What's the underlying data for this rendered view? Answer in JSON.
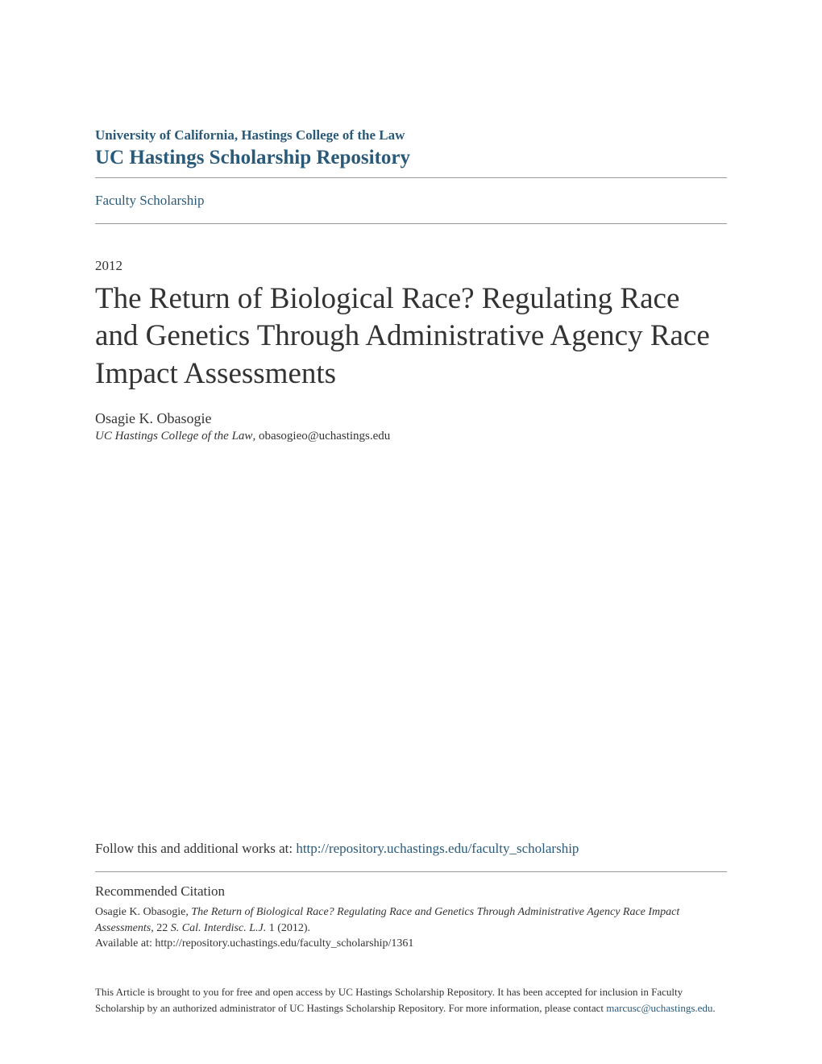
{
  "header": {
    "institution": "University of California, Hastings College of the Law",
    "repository": "UC Hastings Scholarship Repository",
    "scholarship_link": "Faculty Scholarship"
  },
  "article": {
    "year": "2012",
    "title": "The Return of Biological Race? Regulating Race and Genetics Through Administrative Agency Race Impact Assessments",
    "author": "Osagie K. Obasogie",
    "affiliation_italic": "UC Hastings College of the Law",
    "affiliation_email": ", obasogieo@uchastings.edu"
  },
  "follow": {
    "prefix": "Follow this and additional works at: ",
    "link_text": "http://repository.uchastings.edu/faculty_scholarship"
  },
  "citation": {
    "heading": "Recommended Citation",
    "author": "Osagie K. Obasogie, ",
    "title_italic": "The Return of Biological Race? Regulating Race and Genetics Through Administrative Agency Race Impact Assessments",
    "journal_prefix": ", 22 ",
    "journal_italic": "S. Cal. Interdisc. L.J.",
    "journal_suffix": " 1 (2012).",
    "available": "Available at: http://repository.uchastings.edu/faculty_scholarship/1361"
  },
  "footer": {
    "text_prefix": "This Article is brought to you for free and open access by UC Hastings Scholarship Repository. It has been accepted for inclusion in Faculty Scholarship by an authorized administrator of UC Hastings Scholarship Repository. For more information, please contact ",
    "link_text": "marcusc@uchastings.edu",
    "text_suffix": "."
  },
  "colors": {
    "link_color": "#2a5a7a",
    "text_color": "#333333",
    "border_color": "#999999",
    "background": "#ffffff"
  }
}
